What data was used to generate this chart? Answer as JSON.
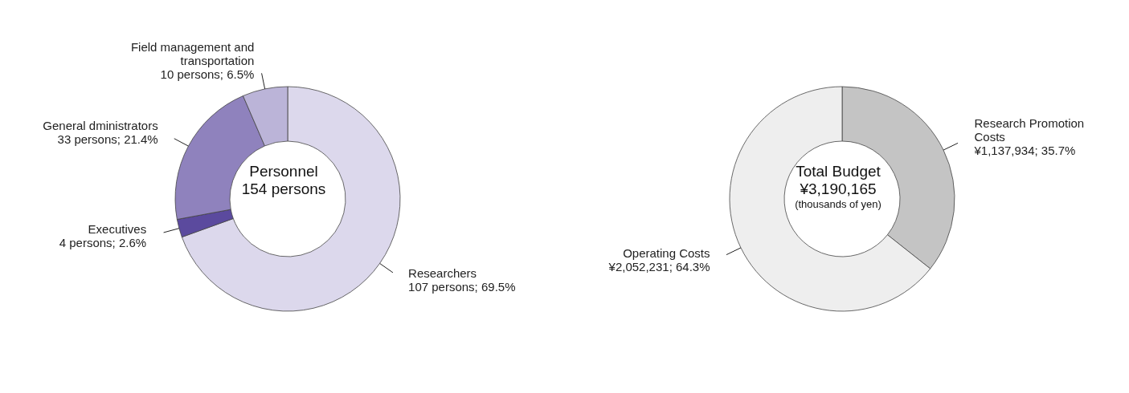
{
  "chart_data": [
    {
      "type": "donut",
      "title": "Personnel",
      "annotations": [
        "154 persons"
      ],
      "categories": [
        "Researchers",
        "Executives",
        "General dministrators",
        "Field management and transportation"
      ],
      "values": [
        107,
        4,
        33,
        10
      ],
      "value_labels": [
        "107 persons; 69.5%",
        "4 persons; 2.6%",
        "33 persons; 21.4%",
        "10 persons; 6.5%"
      ],
      "colors": [
        "#dcd8ec",
        "#5b4a9e",
        "#8f82bd",
        "#bbb4d8"
      ]
    },
    {
      "type": "donut",
      "title": "Total Budget",
      "annotations": [
        "¥3,190,165",
        "(thousands of yen)"
      ],
      "categories": [
        "Research Promotion Costs",
        "Operating Costs"
      ],
      "values": [
        1137934,
        2052231
      ],
      "value_labels": [
        "¥1,137,934; 35.7%",
        "¥2,052,231; 64.3%"
      ],
      "colors": [
        "#c4c4c4",
        "#eeeeee"
      ]
    }
  ]
}
